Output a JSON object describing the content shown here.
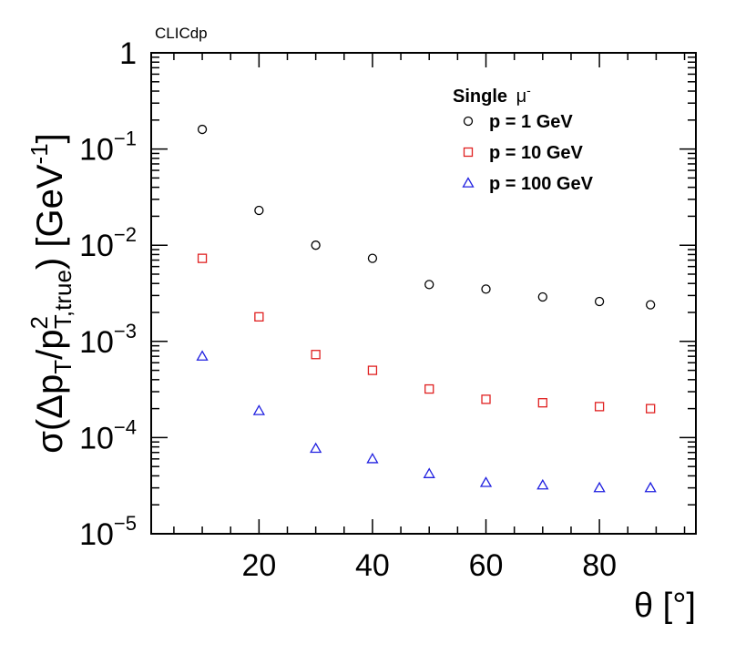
{
  "chart_data": {
    "type": "scatter",
    "tag": "CLICdp",
    "xlabel": "θ [°]",
    "ylabel": {
      "prefix": "σ(Δp",
      "sub1": "T",
      "mid": "/p",
      "sup2": "2",
      "sub2": "T,true",
      "suffix": ") [GeV",
      "sup_unit": "-1",
      "close": "]"
    },
    "xlim": [
      1,
      97
    ],
    "ylim": [
      1e-05,
      1
    ],
    "yscale": "log",
    "x_ticks": [
      20,
      40,
      60,
      80
    ],
    "x_tick_labels": [
      "20",
      "40",
      "60",
      "80"
    ],
    "y_tick_labels": [
      {
        "value": 1,
        "base": "1",
        "exp": ""
      },
      {
        "value": 0.1,
        "base": "10",
        "exp": "−1"
      },
      {
        "value": 0.01,
        "base": "10",
        "exp": "−2"
      },
      {
        "value": 0.001,
        "base": "10",
        "exp": "−3"
      },
      {
        "value": 0.0001,
        "base": "10",
        "exp": "−4"
      },
      {
        "value": 1e-05,
        "base": "10",
        "exp": "−5"
      }
    ],
    "legend": {
      "title": "Single",
      "title_symbol": "μ",
      "title_sup": "-",
      "placement": "top-right"
    },
    "x": [
      10,
      20,
      30,
      40,
      50,
      60,
      70,
      80,
      89
    ],
    "series": [
      {
        "name": "p = 1 GeV",
        "marker": "circle",
        "color": "#000000",
        "values": [
          0.16,
          0.023,
          0.01,
          0.0073,
          0.0039,
          0.0035,
          0.0029,
          0.0026,
          0.0024
        ]
      },
      {
        "name": "p = 10 GeV",
        "marker": "square",
        "color": "#e02020",
        "values": [
          0.0073,
          0.0018,
          0.00073,
          0.0005,
          0.00032,
          0.00025,
          0.00023,
          0.00021,
          0.0002
        ]
      },
      {
        "name": "p = 100 GeV",
        "marker": "triangle",
        "color": "#2020e0",
        "values": [
          0.0007,
          0.00019,
          7.7e-05,
          6e-05,
          4.2e-05,
          3.4e-05,
          3.2e-05,
          3e-05,
          3e-05
        ]
      }
    ]
  }
}
